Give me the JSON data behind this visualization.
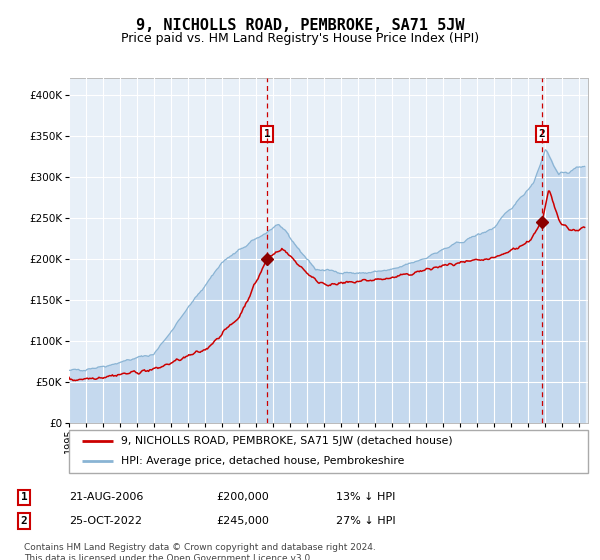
{
  "title": "9, NICHOLLS ROAD, PEMBROKE, SA71 5JW",
  "subtitle": "Price paid vs. HM Land Registry's House Price Index (HPI)",
  "footnote": "Contains HM Land Registry data © Crown copyright and database right 2024.\nThis data is licensed under the Open Government Licence v3.0.",
  "legend_line1": "9, NICHOLLS ROAD, PEMBROKE, SA71 5JW (detached house)",
  "legend_line2": "HPI: Average price, detached house, Pembrokeshire",
  "sale1_label": "1",
  "sale1_date": "21-AUG-2006",
  "sale1_price": "£200,000",
  "sale1_hpi": "13% ↓ HPI",
  "sale1_year": 2006.64,
  "sale1_value": 200000,
  "sale2_label": "2",
  "sale2_date": "25-OCT-2022",
  "sale2_price": "£245,000",
  "sale2_hpi": "27% ↓ HPI",
  "sale2_year": 2022.81,
  "sale2_value": 245000,
  "ylim": [
    0,
    420000
  ],
  "xlim_start": 1995.0,
  "xlim_end": 2025.5,
  "hpi_color": "#8ab4d4",
  "hpi_fill_color": "#c5d9ee",
  "price_color": "#cc0000",
  "marker_color": "#8b0000",
  "plot_bg": "#e8f0f8",
  "grid_color": "#ffffff",
  "title_fontsize": 11,
  "subtitle_fontsize": 9,
  "yticks": [
    0,
    50000,
    100000,
    150000,
    200000,
    250000,
    300000,
    350000,
    400000
  ],
  "ytick_labels": [
    "£0",
    "£50K",
    "£100K",
    "£150K",
    "£200K",
    "£250K",
    "£300K",
    "£350K",
    "£400K"
  ],
  "xticks": [
    1995,
    1996,
    1997,
    1998,
    1999,
    2000,
    2001,
    2002,
    2003,
    2004,
    2005,
    2006,
    2007,
    2008,
    2009,
    2010,
    2011,
    2012,
    2013,
    2014,
    2015,
    2016,
    2017,
    2018,
    2019,
    2020,
    2021,
    2022,
    2023,
    2024,
    2025
  ]
}
